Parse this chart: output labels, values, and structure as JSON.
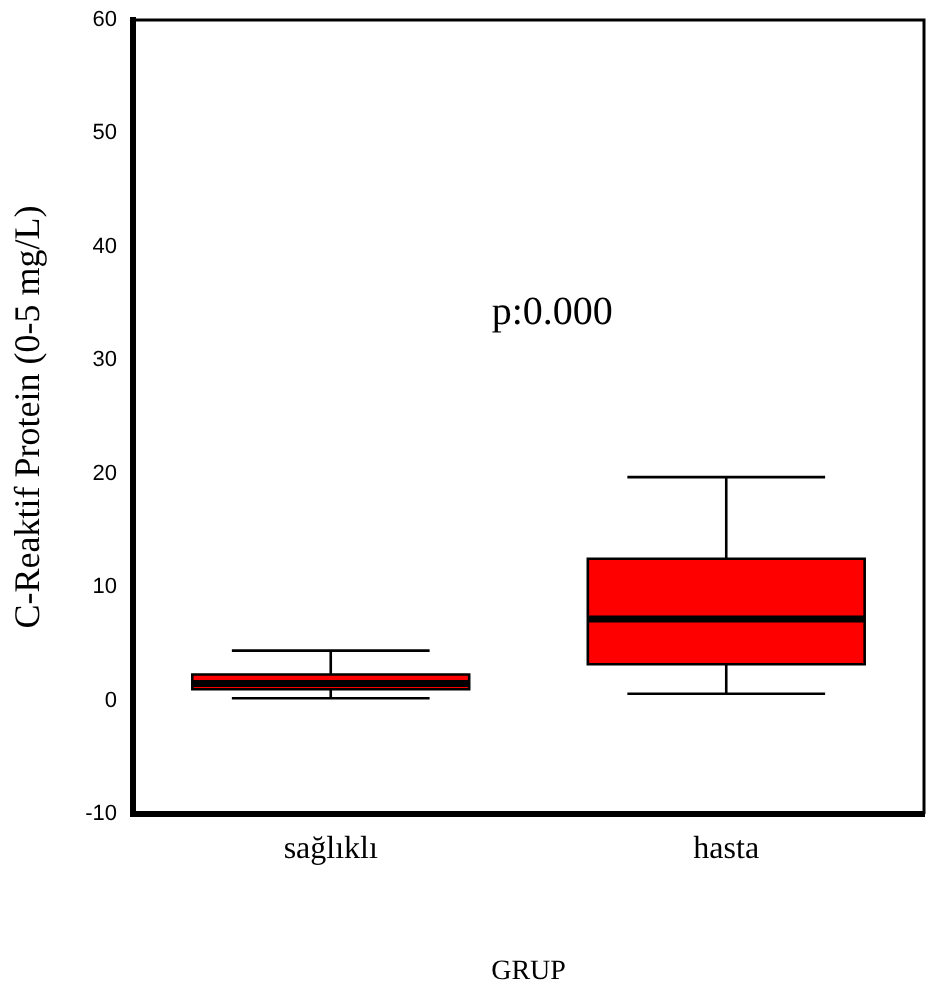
{
  "chart_data": {
    "type": "box",
    "xlabel": "GRUP",
    "ylabel": "C-Reaktif Protein (0-5 mg/L)",
    "categories": [
      "sağlıklı",
      "hasta"
    ],
    "series": [
      {
        "color": "#ff0000",
        "boxes": [
          {
            "low": 0.2,
            "q1": 1.0,
            "median": 1.5,
            "q3": 2.3,
            "high": 4.4
          },
          {
            "low": 0.6,
            "q1": 3.2,
            "median": 7.2,
            "q3": 12.5,
            "high": 19.7
          }
        ]
      }
    ],
    "ylim": [
      -10,
      60
    ],
    "yticks": [
      -10,
      0,
      10,
      20,
      30,
      40,
      50,
      60
    ],
    "grid": false,
    "legend": false,
    "annotations": [
      "p:0.000"
    ]
  }
}
